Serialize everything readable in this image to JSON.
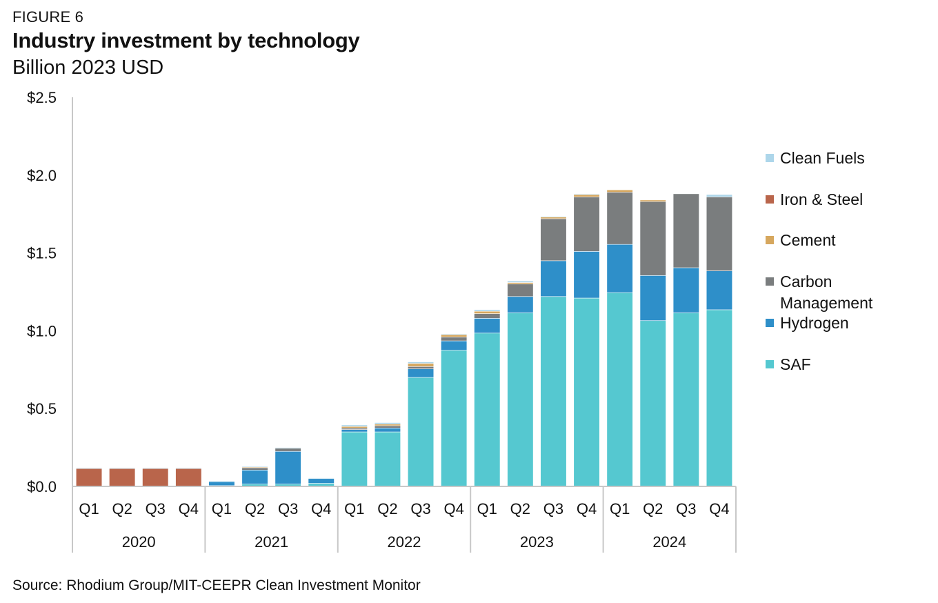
{
  "header": {
    "figure_label": "FIGURE 6",
    "title": "Industry investment by technology",
    "subtitle": "Billion 2023 USD"
  },
  "footer": {
    "source": "Source: Rhodium Group/MIT-CEEPR Clean Investment Monitor"
  },
  "chart_data": {
    "type": "bar",
    "stacked": true,
    "title": "Industry investment by technology",
    "ylabel": "Billion 2023 USD",
    "ylim": [
      0,
      2.5
    ],
    "yticks": [
      0,
      0.5,
      1.0,
      1.5,
      2.0,
      2.5
    ],
    "ytick_labels": [
      "$0.0",
      "$0.5",
      "$1.0",
      "$1.5",
      "$2.0",
      "$2.5"
    ],
    "grid": false,
    "legend_position": "right",
    "categories": [
      "Q1",
      "Q2",
      "Q3",
      "Q4",
      "Q1",
      "Q2",
      "Q3",
      "Q4",
      "Q1",
      "Q2",
      "Q3",
      "Q4",
      "Q1",
      "Q2",
      "Q3",
      "Q4",
      "Q1",
      "Q2",
      "Q3",
      "Q4"
    ],
    "groups": [
      {
        "label": "2020",
        "count": 4
      },
      {
        "label": "2021",
        "count": 4
      },
      {
        "label": "2022",
        "count": 4
      },
      {
        "label": "2023",
        "count": 4
      },
      {
        "label": "2024",
        "count": 4
      }
    ],
    "series": [
      {
        "name": "SAF",
        "color": "#55C8D0",
        "values": [
          0,
          0,
          0,
          0,
          0.005,
          0.015,
          0.015,
          0.02,
          0.35,
          0.35,
          0.7,
          0.875,
          0.985,
          1.115,
          1.22,
          1.21,
          1.245,
          1.065,
          1.115,
          1.135
        ]
      },
      {
        "name": "Hydrogen",
        "color": "#2E8FC9",
        "values": [
          0,
          0,
          0,
          0,
          0.025,
          0.09,
          0.21,
          0.03,
          0.015,
          0.025,
          0.055,
          0.06,
          0.095,
          0.105,
          0.23,
          0.3,
          0.31,
          0.29,
          0.29,
          0.25
        ]
      },
      {
        "name": "Carbon Management",
        "color": "#7A7D7E",
        "values": [
          0,
          0,
          0,
          0,
          0,
          0.015,
          0.02,
          0,
          0.01,
          0.015,
          0.015,
          0.025,
          0.03,
          0.08,
          0.27,
          0.35,
          0.335,
          0.475,
          0.475,
          0.475
        ]
      },
      {
        "name": "Cement",
        "color": "#D6A75E",
        "values": [
          0,
          0,
          0,
          0,
          0,
          0.005,
          0,
          0,
          0.01,
          0.01,
          0.02,
          0.015,
          0.015,
          0.01,
          0.01,
          0.015,
          0.015,
          0.01,
          0,
          0
        ]
      },
      {
        "name": "Iron & Steel",
        "color": "#B9654B",
        "values": [
          0.115,
          0.115,
          0.115,
          0.115,
          0,
          0,
          0,
          0,
          0,
          0,
          0,
          0,
          0,
          0,
          0,
          0,
          0,
          0,
          0,
          0
        ]
      },
      {
        "name": "Clean Fuels",
        "color": "#ADD6EA",
        "values": [
          0.005,
          0.005,
          0.005,
          0.005,
          0.005,
          0.005,
          0.005,
          0.005,
          0.01,
          0.01,
          0.01,
          0.005,
          0.01,
          0.01,
          0.005,
          0.005,
          0,
          0,
          0,
          0.015
        ]
      }
    ],
    "legend": [
      "Clean Fuels",
      "Iron & Steel",
      "Cement",
      "Carbon Management",
      "Hydrogen",
      "SAF"
    ]
  }
}
